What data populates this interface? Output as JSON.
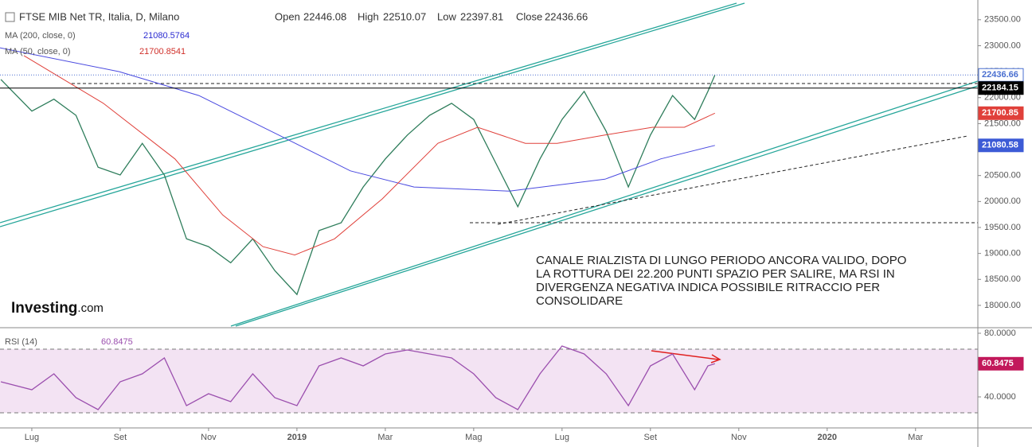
{
  "header": {
    "title": "FTSE MIB Net TR, Italia, D, Milano",
    "open_label": "Open",
    "open": 22446.08,
    "high_label": "High",
    "high": 22510.07,
    "low_label": "Low",
    "low": 22397.81,
    "close_label": "Close",
    "close": 22436.66
  },
  "logo": [
    "Investing",
    ".com"
  ],
  "annotation": [
    "CANALE RIALZISTA DI LUNGO PERIODO ANCORA VALIDO, DOPO",
    "LA ROTTURA DEI 22.200 PUNTI SPAZIO PER SALIRE, MA RSI IN",
    "DIVERGENZA NEGATIVA INDICA POSSIBILE RITRACCIO PER",
    "CONSOLIDARE"
  ],
  "chart_data": [
    {
      "type": "line",
      "title": "FTSE MIB Net TR, Italia, D, Milano",
      "xlim": [
        -0.72,
        21.41
      ],
      "xticks": [
        {
          "value": 0,
          "label": "Lug"
        },
        {
          "value": 2,
          "label": "Set"
        },
        {
          "value": 4,
          "label": "Nov"
        },
        {
          "value": 6,
          "label": "2019"
        },
        {
          "value": 8,
          "label": "Mar"
        },
        {
          "value": 10,
          "label": "Mag"
        },
        {
          "value": 12,
          "label": "Lug"
        },
        {
          "value": 14,
          "label": "Set"
        },
        {
          "value": 16,
          "label": "Nov"
        },
        {
          "value": 18,
          "label": "2020"
        },
        {
          "value": 20,
          "label": "Mar"
        }
      ],
      "ylim": [
        17570,
        23880
      ],
      "yticks": [
        {
          "value": 18000,
          "label": "18000.00"
        },
        {
          "value": 18500,
          "label": "18500.00"
        },
        {
          "value": 19000,
          "label": "19000.00"
        },
        {
          "value": 19500,
          "label": "19500.00"
        },
        {
          "value": 20000,
          "label": "20000.00"
        },
        {
          "value": 20500,
          "label": "20500.00"
        },
        {
          "value": 21000,
          "label": "21000.00"
        },
        {
          "value": 21500,
          "label": "21500.00"
        },
        {
          "value": 22000,
          "label": "22000.00"
        },
        {
          "value": 22500,
          "label": "22500.00"
        },
        {
          "value": 23000,
          "label": "23000.00"
        },
        {
          "value": 23500,
          "label": "23500.00"
        }
      ],
      "series": [
        {
          "color": "#2e7d5b",
          "x": [
            -0.7,
            0,
            0.5,
            1,
            1.5,
            2,
            2.5,
            3,
            3.5,
            4,
            4.5,
            5,
            5.5,
            6,
            6.5,
            7,
            7.5,
            8,
            8.5,
            9,
            9.5,
            10,
            10.5,
            11,
            11.5,
            12,
            12.5,
            13,
            13.5,
            14,
            14.5,
            15,
            15.3,
            15.46
          ],
          "values": [
            22350,
            21740,
            21970,
            21660,
            20660,
            20510,
            21120,
            20510,
            19280,
            19130,
            18820,
            19280,
            18670,
            18210,
            19440,
            19590,
            20280,
            20820,
            21280,
            21660,
            21890,
            21580,
            20740,
            19900,
            20820,
            21580,
            22120,
            21350,
            20280,
            21280,
            22040,
            21580,
            22120,
            22436.66
          ]
        },
        {
          "name": "MA (200, close, 0)",
          "last": 21080.5764,
          "color": "#4a4ae0",
          "x": [
            -0.72,
            1.98,
            3.78,
            5.59,
            7.21,
            8.65,
            10.81,
            12.97,
            14.23,
            15.46
          ],
          "values": [
            22960,
            22500,
            22040,
            21280,
            20590,
            20280,
            20200,
            20430,
            20820,
            21080.58
          ]
        },
        {
          "name": "MA (50, close, 0)",
          "last": 21700.8541,
          "color": "#e0403a",
          "x": [
            -0.18,
            1.62,
            3.24,
            4.32,
            5.23,
            5.95,
            6.85,
            7.93,
            9.19,
            10.09,
            11.17,
            11.89,
            12.97,
            14.05,
            14.77,
            15.46
          ],
          "values": [
            22810,
            21890,
            20820,
            19740,
            19130,
            18970,
            19280,
            20050,
            21120,
            21430,
            21120,
            21120,
            21280,
            21430,
            21430,
            21700.85
          ]
        }
      ],
      "price_tags": [
        {
          "value": 22436.66,
          "color": "#4a6fd0",
          "line": "dotted"
        },
        {
          "value": 22184.15,
          "color": "#000000",
          "line": "solid"
        },
        {
          "value": 21700.85,
          "color": "#e0403a"
        },
        {
          "value": 21080.58,
          "color": "#3c5bd6"
        }
      ]
    },
    {
      "type": "line",
      "title": "RSI (14)",
      "last": 60.8475,
      "ylim": [
        20.5,
        82.5
      ],
      "yticks": [
        {
          "value": 40,
          "label": "40.0000"
        },
        {
          "value": 80,
          "label": "80.0000"
        }
      ],
      "band": [
        30,
        70
      ],
      "series": [
        {
          "color": "#9b4fae",
          "x": [
            -0.7,
            0,
            0.5,
            1,
            1.5,
            2,
            2.5,
            3,
            3.5,
            4,
            4.5,
            5,
            5.5,
            6,
            6.5,
            7,
            7.5,
            8,
            8.5,
            9,
            9.5,
            10,
            10.5,
            11,
            11.5,
            12,
            12.5,
            13,
            13.5,
            14,
            14.5,
            15,
            15.3,
            15.46
          ],
          "values": [
            49.5,
            44.5,
            54.5,
            39.5,
            32,
            49.5,
            54.5,
            64.5,
            34.5,
            42,
            37,
            54.5,
            39.5,
            34.5,
            59.5,
            64.5,
            59.5,
            67,
            69.5,
            67,
            64.5,
            54.5,
            39.5,
            32,
            54.5,
            72,
            67,
            54.5,
            34.5,
            59.5,
            67,
            44.5,
            59.5,
            60.8475
          ]
        }
      ],
      "price_tags": [
        {
          "value": 60.8475,
          "color": "#c2185b"
        }
      ]
    }
  ]
}
